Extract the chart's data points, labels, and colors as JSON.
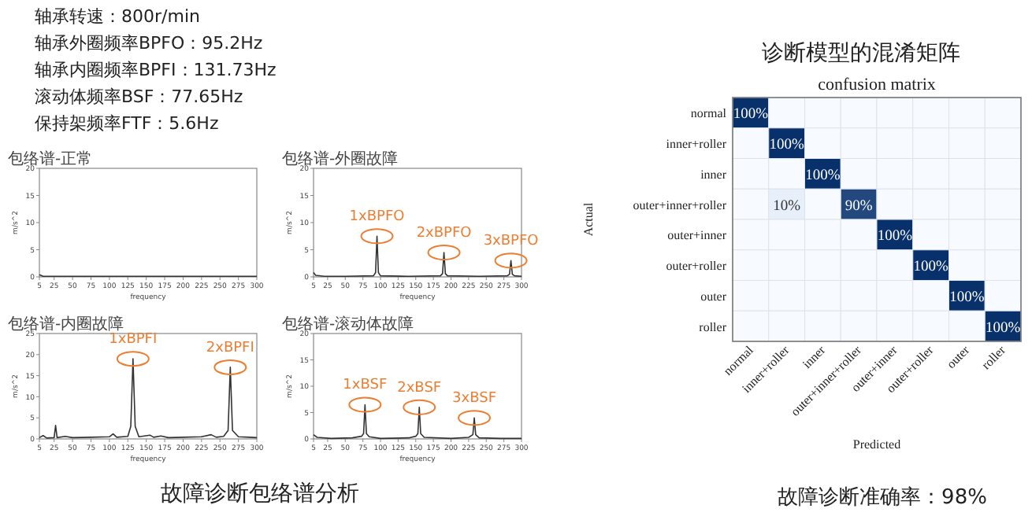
{
  "chart_data": [
    {
      "type": "other",
      "annotations": [
        "轴承转速：800r/min",
        "轴承外圈频率BPFO：95.2Hz",
        "轴承内圈频率BPFI：131.73Hz",
        "滚动体频率BSF：77.65Hz",
        "保持架频率FTF：5.6Hz"
      ]
    },
    {
      "type": "line",
      "title": "包络谱-正常",
      "xlabel": "frequency",
      "ylabel": "m/s^2",
      "xlim": [
        5,
        300
      ],
      "ylim": [
        0,
        20
      ],
      "xticks": [
        5,
        25,
        50,
        75,
        100,
        125,
        150,
        175,
        200,
        225,
        250,
        275,
        300
      ],
      "yticks": [
        0,
        5,
        10,
        15,
        20
      ],
      "grid": false,
      "marker": "none",
      "series": [
        {
          "color": "#333333",
          "x": [
            5,
            10,
            20,
            40,
            60,
            80,
            100,
            120,
            140,
            160,
            180,
            200,
            220,
            240,
            260,
            280,
            300
          ],
          "values": [
            0.4,
            0.1,
            0.1,
            0.1,
            0.1,
            0.1,
            0.1,
            0.1,
            0.1,
            0.1,
            0.1,
            0.1,
            0.1,
            0.1,
            0.1,
            0.1,
            0.1
          ]
        }
      ]
    },
    {
      "type": "line",
      "title": "包络谱-外圈故障",
      "xlabel": "frequency",
      "ylabel": "m/s^2",
      "xlim": [
        5,
        300
      ],
      "ylim": [
        0,
        20
      ],
      "xticks": [
        5,
        25,
        50,
        75,
        100,
        125,
        150,
        175,
        200,
        225,
        250,
        275,
        300
      ],
      "yticks": [
        0,
        5,
        10,
        15,
        20
      ],
      "grid": false,
      "marker": "none",
      "series": [
        {
          "color": "#333333",
          "x": [
            5,
            8,
            20,
            50,
            90,
            93,
            95,
            97,
            100,
            140,
            185,
            188,
            190,
            192,
            195,
            240,
            280,
            283,
            285,
            287,
            290,
            300
          ],
          "values": [
            0.8,
            0.3,
            0.1,
            0.1,
            0.2,
            0.8,
            7.5,
            0.8,
            0.2,
            0.1,
            0.2,
            0.6,
            4.5,
            0.6,
            0.2,
            0.1,
            0.2,
            0.5,
            3,
            0.5,
            0.2,
            0.1
          ]
        }
      ],
      "annotations": [
        {
          "text": "1xBPFO",
          "x": 95,
          "y": 7.5
        },
        {
          "text": "2xBPFO",
          "x": 190,
          "y": 4.5
        },
        {
          "text": "3xBPFO",
          "x": 285,
          "y": 3
        }
      ]
    },
    {
      "type": "line",
      "title": "包络谱-内圈故障",
      "xlabel": "frequency",
      "ylabel": "m/s^2",
      "xlim": [
        5,
        300
      ],
      "ylim": [
        0,
        25
      ],
      "xticks": [
        5,
        25,
        50,
        75,
        100,
        125,
        150,
        175,
        200,
        225,
        250,
        275,
        300
      ],
      "yticks": [
        0,
        5,
        10,
        15,
        20,
        25
      ],
      "grid": false,
      "marker": "none",
      "series": [
        {
          "color": "#333333",
          "x": [
            5,
            10,
            15,
            25,
            27,
            29,
            40,
            50,
            75,
            100,
            105,
            110,
            125,
            129,
            132,
            135,
            140,
            155,
            160,
            170,
            180,
            200,
            225,
            238,
            245,
            255,
            261,
            264,
            267,
            275,
            290,
            300
          ],
          "values": [
            0.3,
            0.8,
            0.2,
            0.3,
            3.2,
            0.3,
            0.6,
            0.3,
            0.4,
            0.5,
            1.2,
            0.4,
            0.6,
            3,
            19,
            3,
            0.5,
            0.9,
            0.4,
            0.7,
            0.3,
            0.4,
            0.5,
            1,
            0.4,
            0.6,
            2,
            17,
            2,
            0.5,
            0.4,
            0.3
          ]
        }
      ],
      "annotations": [
        {
          "text": "1xBPFI",
          "x": 132,
          "y": 19
        },
        {
          "text": "2xBPFI",
          "x": 264,
          "y": 17
        }
      ]
    },
    {
      "type": "line",
      "title": "包络谱-滚动体故障",
      "xlabel": "frequency",
      "ylabel": "m/s^2",
      "xlim": [
        5,
        300
      ],
      "ylim": [
        0,
        20
      ],
      "xticks": [
        5,
        25,
        50,
        75,
        100,
        125,
        150,
        175,
        200,
        225,
        250,
        275,
        300
      ],
      "yticks": [
        0,
        5,
        10,
        15,
        20
      ],
      "grid": false,
      "marker": "none",
      "series": [
        {
          "color": "#333333",
          "x": [
            5,
            10,
            30,
            60,
            73,
            76,
            78,
            80,
            84,
            100,
            140,
            150,
            153,
            155,
            157,
            162,
            200,
            225,
            231,
            233,
            235,
            240,
            270,
            300
          ],
          "values": [
            0.8,
            0.3,
            0.1,
            0.2,
            0.5,
            1,
            6.5,
            1,
            0.4,
            0.1,
            0.2,
            0.5,
            1,
            6,
            1,
            0.3,
            0.1,
            0.3,
            0.8,
            4,
            0.8,
            0.2,
            0.1,
            0.1
          ]
        }
      ],
      "annotations": [
        {
          "text": "1xBSF",
          "x": 78,
          "y": 6.5
        },
        {
          "text": "2xBSF",
          "x": 155,
          "y": 6
        },
        {
          "text": "3xBSF",
          "x": 233,
          "y": 4
        }
      ]
    },
    {
      "type": "other",
      "annotations": [
        "故障诊断包络谱分析"
      ]
    },
    {
      "type": "heatmap",
      "title": "诊断模型的混淆矩阵",
      "subtitle": "confusion matrix",
      "xlabel": "Predicted",
      "ylabel": "Actual",
      "categories": [
        "normal",
        "inner+roller",
        "inner",
        "outer+inner+roller",
        "outer+inner",
        "outer+roller",
        "outer",
        "roller"
      ],
      "y_categories": [
        "normal",
        "inner+roller",
        "inner",
        "outer+inner+roller",
        "outer+inner",
        "outer+roller",
        "outer",
        "roller"
      ],
      "cells": [
        [
          100,
          null,
          null,
          null,
          null,
          null,
          null,
          null
        ],
        [
          null,
          100,
          null,
          null,
          null,
          null,
          null,
          null
        ],
        [
          null,
          null,
          100,
          null,
          null,
          null,
          null,
          null
        ],
        [
          null,
          10,
          null,
          90,
          null,
          null,
          null,
          null
        ],
        [
          null,
          null,
          null,
          null,
          100,
          null,
          null,
          null
        ],
        [
          null,
          null,
          null,
          null,
          null,
          100,
          null,
          null
        ],
        [
          null,
          null,
          null,
          null,
          null,
          null,
          100,
          null
        ],
        [
          null,
          null,
          null,
          null,
          null,
          null,
          null,
          100
        ]
      ],
      "cell_labels": [
        [
          "100%",
          null,
          null,
          null,
          null,
          null,
          null,
          null
        ],
        [
          null,
          "100%",
          null,
          null,
          null,
          null,
          null,
          null
        ],
        [
          null,
          null,
          "100%",
          null,
          null,
          null,
          null,
          null
        ],
        [
          null,
          "10%",
          null,
          "90%",
          null,
          null,
          null,
          null
        ],
        [
          null,
          null,
          null,
          null,
          "100%",
          null,
          null,
          null
        ],
        [
          null,
          null,
          null,
          null,
          null,
          "100%",
          null,
          null
        ],
        [
          null,
          null,
          null,
          null,
          null,
          null,
          "100%",
          null
        ],
        [
          null,
          null,
          null,
          null,
          null,
          null,
          null,
          "100%"
        ]
      ],
      "annotations": [
        "故障诊断准确率：98%"
      ]
    }
  ]
}
